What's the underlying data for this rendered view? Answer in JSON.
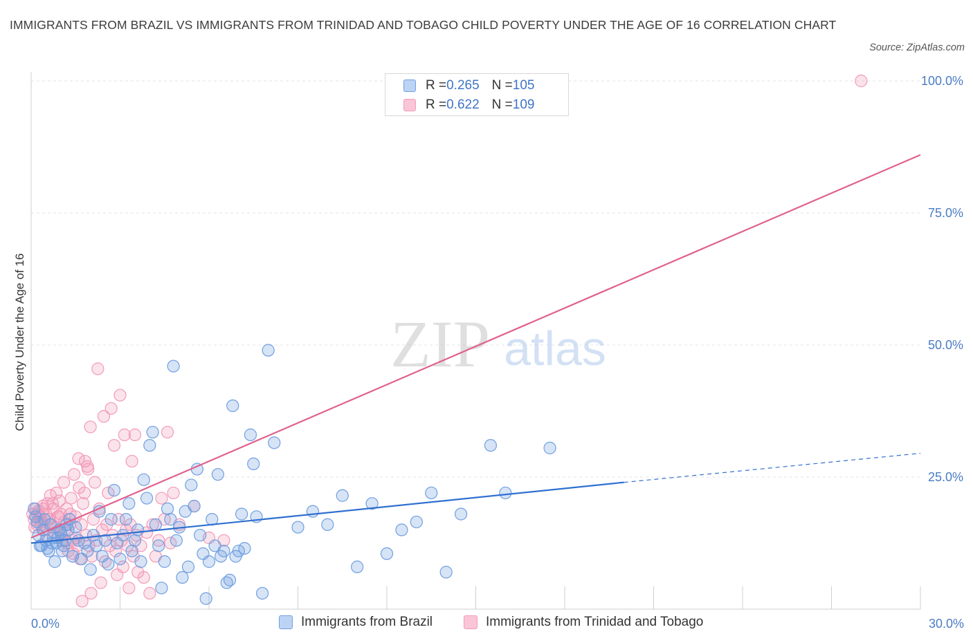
{
  "title": "IMMIGRANTS FROM BRAZIL VS IMMIGRANTS FROM TRINIDAD AND TOBAGO CHILD POVERTY UNDER THE AGE OF 16 CORRELATION CHART",
  "source": "Source: ZipAtlas.com",
  "watermark": {
    "zip": "ZIP",
    "atlas": "atlas"
  },
  "legend": {
    "rows": [
      {
        "r_label": "R = ",
        "r_value": "0.265",
        "n_label": "N = ",
        "n_value": "105"
      },
      {
        "r_label": "R = ",
        "r_value": "0.622",
        "n_label": "N = ",
        "n_value": "109"
      }
    ]
  },
  "chart_data": {
    "type": "scatter",
    "title": "IMMIGRANTS FROM BRAZIL VS IMMIGRANTS FROM TRINIDAD AND TOBAGO CHILD POVERTY UNDER THE AGE OF 16 CORRELATION CHART",
    "xlabel": "",
    "ylabel": "Child Poverty Under the Age of 16",
    "xlim": [
      0,
      30
    ],
    "ylim": [
      0,
      100
    ],
    "x_tick_labels": [
      "0.0%",
      "30.0%"
    ],
    "y_tick_labels": [
      "25.0%",
      "50.0%",
      "75.0%",
      "100.0%"
    ],
    "y_ticks": [
      25,
      50,
      75,
      100
    ],
    "grid": true,
    "legend_position": "top-center",
    "colors": {
      "brazil": "#6f9fe0",
      "brazil_line": "#2f6fd0",
      "tt": "#f29ab8",
      "tt_line": "#e0608c"
    },
    "series": [
      {
        "name": "Immigrants from Brazil",
        "color": "#6f9fe0",
        "R": 0.265,
        "N": 105,
        "trend": {
          "x": [
            0,
            20,
            30
          ],
          "y": [
            12.5,
            24,
            29.5
          ],
          "solid_until": 20
        },
        "points": [
          [
            0.2,
            16.5
          ],
          [
            0.3,
            12
          ],
          [
            0.4,
            15
          ],
          [
            0.5,
            13
          ],
          [
            0.6,
            11
          ],
          [
            0.7,
            12.5
          ],
          [
            0.8,
            9
          ],
          [
            0.9,
            13.5
          ],
          [
            1.0,
            14.5
          ],
          [
            1.1,
            12
          ],
          [
            1.2,
            16
          ],
          [
            1.3,
            17
          ],
          [
            1.4,
            10
          ],
          [
            1.5,
            15.5
          ],
          [
            1.6,
            13
          ],
          [
            1.7,
            9.5
          ],
          [
            1.8,
            12.5
          ],
          [
            1.9,
            11
          ],
          [
            2.0,
            7.5
          ],
          [
            2.1,
            14
          ],
          [
            2.2,
            12
          ],
          [
            2.3,
            18.5
          ],
          [
            2.4,
            10
          ],
          [
            2.5,
            13
          ],
          [
            2.6,
            8.5
          ],
          [
            2.7,
            17
          ],
          [
            2.8,
            22.5
          ],
          [
            2.9,
            12.5
          ],
          [
            3.0,
            9.5
          ],
          [
            3.1,
            14
          ],
          [
            3.2,
            17
          ],
          [
            3.3,
            20
          ],
          [
            3.4,
            11
          ],
          [
            3.5,
            13
          ],
          [
            3.6,
            15
          ],
          [
            3.7,
            9
          ],
          [
            3.8,
            24.5
          ],
          [
            3.9,
            21
          ],
          [
            4.0,
            31
          ],
          [
            4.1,
            33.5
          ],
          [
            4.2,
            16
          ],
          [
            4.3,
            12
          ],
          [
            4.4,
            4
          ],
          [
            4.5,
            9
          ],
          [
            4.6,
            19
          ],
          [
            4.7,
            17
          ],
          [
            4.8,
            46
          ],
          [
            4.9,
            13
          ],
          [
            5.0,
            15.5
          ],
          [
            5.1,
            6
          ],
          [
            5.2,
            18.5
          ],
          [
            5.3,
            8
          ],
          [
            5.4,
            23.5
          ],
          [
            5.5,
            19.5
          ],
          [
            5.6,
            26.5
          ],
          [
            5.7,
            14
          ],
          [
            5.8,
            10.5
          ],
          [
            5.9,
            2
          ],
          [
            6.0,
            9
          ],
          [
            6.1,
            17
          ],
          [
            6.2,
            12
          ],
          [
            6.3,
            25.5
          ],
          [
            6.4,
            10
          ],
          [
            6.5,
            11
          ],
          [
            6.6,
            5
          ],
          [
            6.7,
            5.5
          ],
          [
            6.8,
            38.5
          ],
          [
            6.9,
            10
          ],
          [
            7.0,
            11
          ],
          [
            7.1,
            18
          ],
          [
            7.2,
            11.5
          ],
          [
            7.4,
            33
          ],
          [
            7.5,
            27.5
          ],
          [
            7.6,
            17.5
          ],
          [
            7.8,
            3
          ],
          [
            8.0,
            49
          ],
          [
            8.2,
            31.5
          ],
          [
            9.0,
            15.5
          ],
          [
            9.5,
            18.5
          ],
          [
            10.0,
            16
          ],
          [
            10.5,
            21.5
          ],
          [
            11.0,
            8
          ],
          [
            11.5,
            20
          ],
          [
            12.0,
            10.5
          ],
          [
            12.5,
            15
          ],
          [
            13.0,
            16.5
          ],
          [
            13.5,
            22
          ],
          [
            14.0,
            7
          ],
          [
            14.5,
            18
          ],
          [
            15.5,
            31
          ],
          [
            16.0,
            22
          ],
          [
            17.5,
            30.5
          ],
          [
            0.1,
            19
          ],
          [
            0.15,
            17.5
          ],
          [
            0.25,
            14
          ],
          [
            0.35,
            12
          ],
          [
            0.45,
            17
          ],
          [
            0.55,
            11.5
          ],
          [
            0.65,
            16
          ],
          [
            0.75,
            13.5
          ],
          [
            0.85,
            12.5
          ],
          [
            0.95,
            15
          ],
          [
            1.05,
            11
          ],
          [
            1.15,
            13
          ],
          [
            1.25,
            15
          ]
        ]
      },
      {
        "name": "Immigrants from Trinidad and Tobago",
        "color": "#f29ab8",
        "R": 0.622,
        "N": 109,
        "trend": {
          "x": [
            0,
            30
          ],
          "y": [
            13.5,
            86
          ]
        },
        "points": [
          [
            0.05,
            18
          ],
          [
            0.1,
            17
          ],
          [
            0.15,
            19
          ],
          [
            0.2,
            16
          ],
          [
            0.25,
            18.5
          ],
          [
            0.3,
            17.5
          ],
          [
            0.35,
            16.5
          ],
          [
            0.4,
            19.5
          ],
          [
            0.45,
            15
          ],
          [
            0.5,
            18
          ],
          [
            0.55,
            20
          ],
          [
            0.6,
            17
          ],
          [
            0.65,
            21.5
          ],
          [
            0.7,
            16
          ],
          [
            0.75,
            19
          ],
          [
            0.8,
            14.5
          ],
          [
            0.85,
            22
          ],
          [
            0.9,
            17.5
          ],
          [
            0.95,
            20.5
          ],
          [
            1.0,
            18
          ],
          [
            1.05,
            13
          ],
          [
            1.1,
            24
          ],
          [
            1.15,
            15
          ],
          [
            1.2,
            19
          ],
          [
            1.25,
            11
          ],
          [
            1.3,
            16
          ],
          [
            1.35,
            21
          ],
          [
            1.4,
            13
          ],
          [
            1.45,
            25.5
          ],
          [
            1.5,
            17.5
          ],
          [
            1.55,
            12
          ],
          [
            1.6,
            28.5
          ],
          [
            1.65,
            9.5
          ],
          [
            1.7,
            16
          ],
          [
            1.75,
            20
          ],
          [
            1.8,
            22
          ],
          [
            1.85,
            14
          ],
          [
            1.9,
            27
          ],
          [
            1.95,
            12
          ],
          [
            2.0,
            34.5
          ],
          [
            2.05,
            10
          ],
          [
            2.1,
            17
          ],
          [
            2.15,
            24
          ],
          [
            2.2,
            13
          ],
          [
            2.25,
            45.5
          ],
          [
            2.3,
            19
          ],
          [
            2.35,
            5
          ],
          [
            2.4,
            15
          ],
          [
            2.45,
            36.5
          ],
          [
            2.5,
            9
          ],
          [
            2.55,
            16
          ],
          [
            2.6,
            22
          ],
          [
            2.65,
            12
          ],
          [
            2.7,
            38
          ],
          [
            2.75,
            14
          ],
          [
            2.8,
            31
          ],
          [
            2.85,
            11
          ],
          [
            2.9,
            6.5
          ],
          [
            2.95,
            17
          ],
          [
            3.0,
            40.5
          ],
          [
            3.05,
            13
          ],
          [
            3.1,
            8
          ],
          [
            3.15,
            33
          ],
          [
            3.2,
            15
          ],
          [
            3.25,
            12
          ],
          [
            3.3,
            4
          ],
          [
            3.35,
            16
          ],
          [
            3.4,
            28
          ],
          [
            3.45,
            10
          ],
          [
            3.5,
            33
          ],
          [
            3.55,
            14
          ],
          [
            3.6,
            7
          ],
          [
            3.7,
            12
          ],
          [
            3.8,
            6
          ],
          [
            3.9,
            14.5
          ],
          [
            4.0,
            3
          ],
          [
            4.1,
            16
          ],
          [
            4.2,
            10
          ],
          [
            4.3,
            13
          ],
          [
            4.4,
            21
          ],
          [
            4.5,
            17
          ],
          [
            4.6,
            33.5
          ],
          [
            4.7,
            12.5
          ],
          [
            4.8,
            22
          ],
          [
            5.0,
            16
          ],
          [
            5.5,
            19.5
          ],
          [
            6.0,
            13.5
          ],
          [
            6.5,
            13
          ],
          [
            28.0,
            100
          ],
          [
            0.12,
            15.5
          ],
          [
            0.22,
            18
          ],
          [
            0.32,
            16
          ],
          [
            0.42,
            19
          ],
          [
            0.52,
            14
          ],
          [
            0.62,
            17
          ],
          [
            0.72,
            20
          ],
          [
            0.82,
            15.5
          ],
          [
            0.92,
            17.5
          ],
          [
            1.02,
            14
          ],
          [
            1.12,
            16.5
          ],
          [
            1.22,
            12.5
          ],
          [
            1.32,
            18
          ],
          [
            1.42,
            10.5
          ],
          [
            1.52,
            13.5
          ],
          [
            1.62,
            23
          ],
          [
            1.72,
            1.5
          ],
          [
            1.82,
            28
          ],
          [
            1.92,
            26.5
          ],
          [
            2.02,
            3
          ]
        ]
      }
    ]
  },
  "bottom_legend": [
    {
      "label": "Immigrants from Brazil"
    },
    {
      "label": "Immigrants from Trinidad and Tobago"
    }
  ]
}
